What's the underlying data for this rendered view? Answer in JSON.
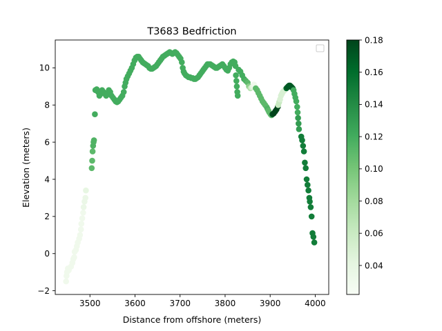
{
  "chart_data": {
    "type": "scatter",
    "title": "T3683 Bedfriction",
    "xlabel": "Distance from offshore (meters)",
    "ylabel": "Elevation (meters)",
    "xlim": [
      3423,
      4030
    ],
    "ylim": [
      -2.2,
      11.5
    ],
    "xticks": [
      3500,
      3600,
      3700,
      3800,
      3900,
      4000
    ],
    "yticks": [
      -2,
      0,
      2,
      4,
      6,
      8,
      10
    ],
    "legend": "top-right, empty",
    "grid": false,
    "colormap": "Greens",
    "colorbar": {
      "min": 0.022,
      "max": 0.18,
      "ticks": [
        0.04,
        0.06,
        0.08,
        0.1,
        0.12,
        0.14,
        0.16,
        0.18
      ]
    },
    "points": [
      [
        3447,
        -1.5,
        0.03
      ],
      [
        3448,
        -1.2,
        0.03
      ],
      [
        3449,
        -1.0,
        0.03
      ],
      [
        3451,
        -0.8,
        0.03
      ],
      [
        3453,
        -0.9,
        0.03
      ],
      [
        3458,
        -0.7,
        0.03
      ],
      [
        3461,
        -0.5,
        0.03
      ],
      [
        3463,
        -0.3,
        0.03
      ],
      [
        3465,
        -0.2,
        0.03
      ],
      [
        3466,
        0.1,
        0.03
      ],
      [
        3469,
        0.2,
        0.03
      ],
      [
        3471,
        0.4,
        0.03
      ],
      [
        3473,
        0.6,
        0.03
      ],
      [
        3476,
        0.8,
        0.03
      ],
      [
        3478,
        1.0,
        0.03
      ],
      [
        3480,
        1.3,
        0.03
      ],
      [
        3481,
        1.6,
        0.03
      ],
      [
        3483,
        1.9,
        0.03
      ],
      [
        3485,
        2.2,
        0.03
      ],
      [
        3486,
        2.5,
        0.035
      ],
      [
        3488,
        2.8,
        0.035
      ],
      [
        3490,
        3.0,
        0.035
      ],
      [
        3491,
        3.4,
        0.04
      ],
      [
        3504,
        4.6,
        0.11
      ],
      [
        3505,
        5.0,
        0.11
      ],
      [
        3506,
        5.5,
        0.11
      ],
      [
        3507,
        5.8,
        0.115
      ],
      [
        3508,
        6.0,
        0.115
      ],
      [
        3509,
        6.1,
        0.115
      ],
      [
        3511,
        7.5,
        0.12
      ],
      [
        3512,
        8.8,
        0.12
      ],
      [
        3515,
        8.85,
        0.12
      ],
      [
        3518,
        8.7,
        0.12
      ],
      [
        3521,
        8.5,
        0.12
      ],
      [
        3524,
        8.6,
        0.12
      ],
      [
        3527,
        8.8,
        0.12
      ],
      [
        3530,
        8.7,
        0.12
      ],
      [
        3533,
        8.6,
        0.12
      ],
      [
        3536,
        8.5,
        0.12
      ],
      [
        3539,
        8.6,
        0.12
      ],
      [
        3542,
        8.8,
        0.12
      ],
      [
        3545,
        8.7,
        0.12
      ],
      [
        3548,
        8.5,
        0.12
      ],
      [
        3551,
        8.4,
        0.12
      ],
      [
        3554,
        8.3,
        0.12
      ],
      [
        3557,
        8.2,
        0.12
      ],
      [
        3560,
        8.15,
        0.12
      ],
      [
        3563,
        8.2,
        0.12
      ],
      [
        3566,
        8.3,
        0.12
      ],
      [
        3569,
        8.4,
        0.12
      ],
      [
        3572,
        8.5,
        0.12
      ],
      [
        3575,
        8.7,
        0.12
      ],
      [
        3577,
        9.0,
        0.12
      ],
      [
        3579,
        9.2,
        0.12
      ],
      [
        3581,
        9.4,
        0.12
      ],
      [
        3584,
        9.55,
        0.12
      ],
      [
        3587,
        9.7,
        0.12
      ],
      [
        3590,
        9.85,
        0.12
      ],
      [
        3593,
        10.0,
        0.12
      ],
      [
        3596,
        10.2,
        0.12
      ],
      [
        3599,
        10.4,
        0.12
      ],
      [
        3602,
        10.55,
        0.12
      ],
      [
        3605,
        10.6,
        0.12
      ],
      [
        3608,
        10.6,
        0.12
      ],
      [
        3611,
        10.5,
        0.12
      ],
      [
        3614,
        10.4,
        0.12
      ],
      [
        3617,
        10.3,
        0.12
      ],
      [
        3620,
        10.25,
        0.12
      ],
      [
        3623,
        10.2,
        0.12
      ],
      [
        3626,
        10.15,
        0.12
      ],
      [
        3629,
        10.1,
        0.12
      ],
      [
        3632,
        10.0,
        0.12
      ],
      [
        3635,
        9.95,
        0.12
      ],
      [
        3638,
        9.95,
        0.12
      ],
      [
        3641,
        10.0,
        0.12
      ],
      [
        3644,
        10.05,
        0.12
      ],
      [
        3647,
        10.1,
        0.12
      ],
      [
        3650,
        10.2,
        0.12
      ],
      [
        3653,
        10.3,
        0.12
      ],
      [
        3656,
        10.4,
        0.12
      ],
      [
        3659,
        10.5,
        0.12
      ],
      [
        3662,
        10.6,
        0.12
      ],
      [
        3665,
        10.65,
        0.12
      ],
      [
        3668,
        10.7,
        0.12
      ],
      [
        3671,
        10.75,
        0.12
      ],
      [
        3674,
        10.8,
        0.12
      ],
      [
        3677,
        10.85,
        0.12
      ],
      [
        3680,
        10.8,
        0.12
      ],
      [
        3683,
        10.75,
        0.12
      ],
      [
        3686,
        10.8,
        0.12
      ],
      [
        3689,
        10.85,
        0.12
      ],
      [
        3692,
        10.8,
        0.12
      ],
      [
        3695,
        10.7,
        0.12
      ],
      [
        3698,
        10.6,
        0.12
      ],
      [
        3701,
        10.5,
        0.12
      ],
      [
        3704,
        10.3,
        0.12
      ],
      [
        3706,
        10.0,
        0.12
      ],
      [
        3708,
        9.8,
        0.12
      ],
      [
        3710,
        9.7,
        0.12
      ],
      [
        3713,
        9.6,
        0.12
      ],
      [
        3716,
        9.55,
        0.12
      ],
      [
        3719,
        9.5,
        0.12
      ],
      [
        3722,
        9.5,
        0.12
      ],
      [
        3725,
        9.45,
        0.12
      ],
      [
        3728,
        9.45,
        0.12
      ],
      [
        3731,
        9.4,
        0.12
      ],
      [
        3734,
        9.4,
        0.12
      ],
      [
        3737,
        9.45,
        0.12
      ],
      [
        3740,
        9.5,
        0.12
      ],
      [
        3743,
        9.6,
        0.12
      ],
      [
        3746,
        9.7,
        0.12
      ],
      [
        3749,
        9.8,
        0.12
      ],
      [
        3752,
        9.9,
        0.12
      ],
      [
        3755,
        10.0,
        0.12
      ],
      [
        3758,
        10.1,
        0.12
      ],
      [
        3761,
        10.2,
        0.12
      ],
      [
        3764,
        10.2,
        0.12
      ],
      [
        3767,
        10.2,
        0.12
      ],
      [
        3770,
        10.15,
        0.12
      ],
      [
        3773,
        10.1,
        0.12
      ],
      [
        3776,
        10.05,
        0.12
      ],
      [
        3779,
        10.0,
        0.12
      ],
      [
        3782,
        10.0,
        0.12
      ],
      [
        3785,
        10.05,
        0.12
      ],
      [
        3788,
        10.1,
        0.12
      ],
      [
        3791,
        10.15,
        0.12
      ],
      [
        3794,
        10.2,
        0.12
      ],
      [
        3797,
        10.1,
        0.12
      ],
      [
        3800,
        10.0,
        0.12
      ],
      [
        3803,
        9.9,
        0.12
      ],
      [
        3806,
        9.85,
        0.12
      ],
      [
        3809,
        10.0,
        0.12
      ],
      [
        3812,
        10.2,
        0.12
      ],
      [
        3815,
        10.3,
        0.12
      ],
      [
        3818,
        10.35,
        0.12
      ],
      [
        3821,
        10.3,
        0.12
      ],
      [
        3823,
        10.1,
        0.12
      ],
      [
        3824,
        9.6,
        0.12
      ],
      [
        3825,
        9.3,
        0.12
      ],
      [
        3826,
        9.0,
        0.12
      ],
      [
        3827,
        8.7,
        0.12
      ],
      [
        3828,
        8.5,
        0.12
      ],
      [
        3830,
        9.9,
        0.12
      ],
      [
        3834,
        9.8,
        0.12
      ],
      [
        3838,
        9.6,
        0.12
      ],
      [
        3842,
        9.4,
        0.12
      ],
      [
        3846,
        9.3,
        0.115
      ],
      [
        3850,
        9.2,
        0.11
      ],
      [
        3853,
        9.0,
        0.09
      ],
      [
        3856,
        8.9,
        0.07
      ],
      [
        3859,
        8.95,
        0.05
      ],
      [
        3862,
        9.0,
        0.04
      ],
      [
        3864,
        9.1,
        0.03
      ],
      [
        3866,
        9.0,
        0.03
      ],
      [
        3868,
        8.9,
        0.11
      ],
      [
        3871,
        8.8,
        0.11
      ],
      [
        3874,
        8.65,
        0.11
      ],
      [
        3877,
        8.5,
        0.11
      ],
      [
        3880,
        8.35,
        0.11
      ],
      [
        3883,
        8.2,
        0.11
      ],
      [
        3886,
        8.1,
        0.11
      ],
      [
        3889,
        8.0,
        0.11
      ],
      [
        3892,
        7.9,
        0.11
      ],
      [
        3894,
        7.8,
        0.115
      ],
      [
        3896,
        7.7,
        0.11
      ],
      [
        3898,
        7.6,
        0.11
      ],
      [
        3901,
        7.5,
        0.11
      ],
      [
        3903,
        7.45,
        0.11
      ],
      [
        3905,
        7.5,
        0.175
      ],
      [
        3908,
        7.55,
        0.18
      ],
      [
        3911,
        7.65,
        0.18
      ],
      [
        3914,
        7.75,
        0.18
      ],
      [
        3917,
        7.9,
        0.18
      ],
      [
        3918,
        8.0,
        0.06
      ],
      [
        3920,
        8.15,
        0.06
      ],
      [
        3922,
        8.3,
        0.05
      ],
      [
        3924,
        8.5,
        0.05
      ],
      [
        3926,
        8.6,
        0.05
      ],
      [
        3928,
        8.7,
        0.05
      ],
      [
        3930,
        8.75,
        0.05
      ],
      [
        3932,
        8.8,
        0.05
      ],
      [
        3934,
        8.85,
        0.05
      ],
      [
        3936,
        8.9,
        0.16
      ],
      [
        3938,
        8.95,
        0.17
      ],
      [
        3940,
        9.0,
        0.17
      ],
      [
        3942,
        9.05,
        0.17
      ],
      [
        3944,
        9.05,
        0.17
      ],
      [
        3946,
        9.0,
        0.17
      ],
      [
        3948,
        8.95,
        0.17
      ],
      [
        3950,
        8.9,
        0.17
      ],
      [
        3952,
        8.8,
        0.12
      ],
      [
        3954,
        8.6,
        0.12
      ],
      [
        3956,
        8.4,
        0.12
      ],
      [
        3958,
        8.2,
        0.12
      ],
      [
        3960,
        7.9,
        0.12
      ],
      [
        3961,
        7.6,
        0.12
      ],
      [
        3962,
        7.3,
        0.13
      ],
      [
        3963,
        7.0,
        0.13
      ],
      [
        3964,
        6.7,
        0.13
      ],
      [
        3969,
        6.3,
        0.15
      ],
      [
        3971,
        6.1,
        0.15
      ],
      [
        3973,
        5.8,
        0.15
      ],
      [
        3975,
        5.5,
        0.15
      ],
      [
        3977,
        4.9,
        0.15
      ],
      [
        3979,
        4.6,
        0.15
      ],
      [
        3981,
        4.0,
        0.15
      ],
      [
        3983,
        3.7,
        0.15
      ],
      [
        3985,
        3.4,
        0.15
      ],
      [
        3987,
        3.0,
        0.15
      ],
      [
        3988,
        2.8,
        0.15
      ],
      [
        3990,
        2.5,
        0.15
      ],
      [
        3992,
        2.0,
        0.15
      ],
      [
        3994,
        1.1,
        0.15
      ],
      [
        3996,
        0.9,
        0.15
      ],
      [
        3998,
        0.6,
        0.15
      ]
    ]
  }
}
